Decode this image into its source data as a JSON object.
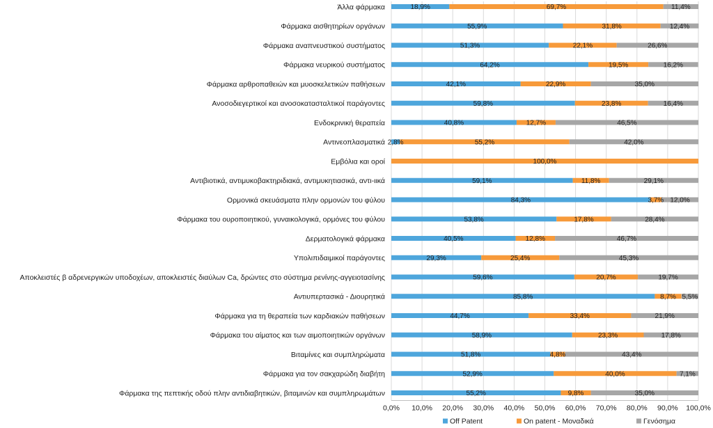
{
  "chart_data": {
    "type": "bar",
    "orientation": "horizontal",
    "stacked": true,
    "categories": [
      "Άλλα φάρμακα",
      "Φάρμακα αισθητηρίων οργάνων",
      "Φάρμακα αναπνευστικού συστήματος",
      "Φάρμακα νευρικού συστήματος",
      "Φάρμακα αρθροπαθειών και μυοσκελετικών παθήσεων",
      "Ανοσοδιεγερτικοί και ανοσοκατασταλτικοί παράγοντες",
      "Ενδοκρινική θεραπεία",
      "Αντινεοπλασματικά",
      "Εμβόλια και οροί",
      "Αντιβιοτικά, αντιμυκοβακτηριδιακά, αντιμυκητιασικά, αντι-ιικά",
      "Ορμονικά σκευάσματα πλην ορμονών του φύλου",
      "Φάρμακα του ουροποιητικού, γυναικολογικά, ορμόνες του φύλου",
      "Δερματολογικά φάρμακα",
      "Υπολιπιδαιμικοί παράγοντες",
      "Αποκλειστές β αδρενεργικών υποδοχέων, αποκλειστές διαύλων Ca, δρώντες στο σύστημα ρενίνης-αγγειοτασίνης",
      "Αντιυπερτασικά - Διουρητικά",
      "Φάρμακα για τη θεραπεία των καρδιακών παθήσεων",
      "Φάρμακα του αίματος και των αιμοποιητικών οργάνων",
      "Βιταμίνες και συμπληρώματα",
      "Φάρμακα για τον σακχαρώδη διαβήτη",
      "Φάρμακα της πεπτικής οδού πλην αντιδιαβητικών, βιταμινών και συμπληρωμάτων"
    ],
    "series": [
      {
        "name": "Off Patent",
        "color": "#4ea6dc",
        "values": [
          18.9,
          55.9,
          51.3,
          64.2,
          42.1,
          59.8,
          40.8,
          2.8,
          0.0,
          59.1,
          84.3,
          53.8,
          40.5,
          29.3,
          59.6,
          85.8,
          44.7,
          58.9,
          51.8,
          52.9,
          55.2
        ],
        "labels": [
          "18,9%",
          "55,9%",
          "51,3%",
          "64,2%",
          "42,1%",
          "59,8%",
          "40,8%",
          "2,8%",
          "",
          "59,1%",
          "84,3%",
          "53,8%",
          "40,5%",
          "29,3%",
          "59,6%",
          "85,8%",
          "44,7%",
          "58,9%",
          "51,8%",
          "52,9%",
          "55,2%"
        ]
      },
      {
        "name": "On patent - Μοναδικά",
        "color": "#f79a3a",
        "values": [
          69.7,
          31.8,
          22.1,
          19.5,
          22.9,
          23.8,
          12.7,
          55.2,
          100.0,
          11.8,
          3.7,
          17.8,
          12.8,
          25.4,
          20.7,
          8.7,
          33.4,
          23.3,
          4.8,
          40.0,
          9.8
        ],
        "labels": [
          "69,7%",
          "31,8%",
          "22,1%",
          "19,5%",
          "22,9%",
          "23,8%",
          "12,7%",
          "55,2%",
          "100,0%",
          "11,8%",
          "3,7%",
          "17,8%",
          "12,8%",
          "25,4%",
          "20,7%",
          "8,7%",
          "33,4%",
          "23,3%",
          "4,8%",
          "40,0%",
          "9,8%"
        ]
      },
      {
        "name": "Γενόσημα",
        "color": "#a6a6a6",
        "values": [
          11.4,
          12.4,
          26.6,
          16.2,
          35.0,
          16.4,
          46.5,
          42.0,
          0.0,
          29.1,
          12.0,
          28.4,
          46.7,
          45.3,
          19.7,
          5.5,
          21.9,
          17.8,
          43.4,
          7.1,
          35.0
        ],
        "labels": [
          "11,4%",
          "12,4%",
          "26,6%",
          "16,2%",
          "35,0%",
          "16,4%",
          "46,5%",
          "42,0%",
          "",
          "29,1%",
          "12,0%",
          "28,4%",
          "46,7%",
          "45,3%",
          "19,7%",
          "5,5%",
          "21,9%",
          "17,8%",
          "43,4%",
          "7,1%",
          "35,0%"
        ]
      }
    ],
    "xlim": [
      0,
      100
    ],
    "xticks": [
      "0,0%",
      "10,0%",
      "20,0%",
      "30,0%",
      "40,0%",
      "50,0%",
      "60,0%",
      "70,0%",
      "80,0%",
      "90,0%",
      "100,0%"
    ],
    "legend_position": "bottom",
    "title": "",
    "xlabel": "",
    "ylabel": ""
  }
}
